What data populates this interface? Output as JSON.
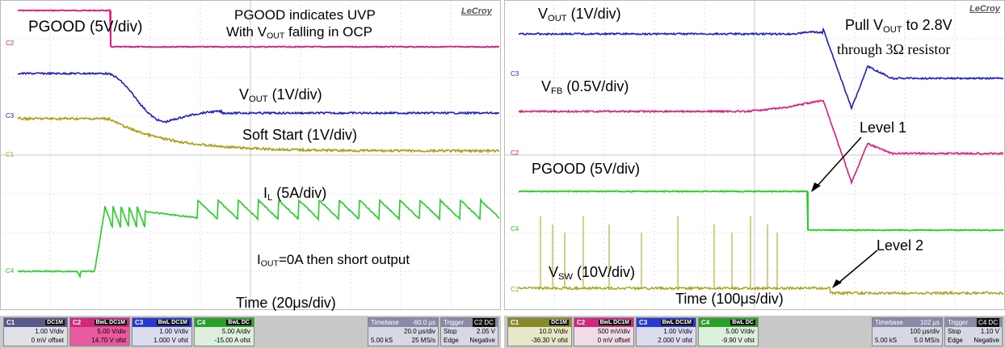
{
  "left": {
    "brand": "LeCroy",
    "labels": {
      "pgood": "PGOOD (5V/div)",
      "uvp_line1": "PGOOD indicates UVP",
      "uvp_line2a": "With V",
      "uvp_sub": "OUT",
      "uvp_line2b": " falling in OCP",
      "vout_a": "V",
      "vout_sub": "OUT",
      "vout_b": " (1V/div)",
      "ss": "Soft Start (1V/div)",
      "il_a": "I",
      "il_sub": "L",
      "il_b": " (5A/div)",
      "iout_a": "I",
      "iout_sub": "OUT",
      "iout_b": "=0A then short output",
      "time": "Time (20μs/div)"
    },
    "markers": {
      "c2": "C2",
      "c3": "C3",
      "c1": "C1",
      "c4": "C4"
    },
    "channels": [
      {
        "name": "C1",
        "mode": "DC1M",
        "line1": "1.00 V/div",
        "line2": "0 mV offset",
        "color": "#5a5a8a"
      },
      {
        "name": "C2",
        "mode": "BwL DC1M",
        "line1": "5.00 V/div",
        "line2": "14.70 V ofst",
        "color": "#d0287a"
      },
      {
        "name": "C3",
        "mode": "BwL DC1M",
        "line1": "1.00 V/div",
        "line2": "1.000 V ofst",
        "color": "#2a3ad0"
      },
      {
        "name": "C4",
        "mode": "BwL DC",
        "line1": "5.00 A/div",
        "line2": "-15.00 A ofst",
        "color": "#2aa02a"
      }
    ],
    "timebase": {
      "label": "Timebase",
      "value": "-60.0 µs",
      "div": "20.0 µs/div",
      "samples": "5.00 kS",
      "rate": "25 MS/s"
    },
    "trigger": {
      "label": "Trigger",
      "ch": "C2 DC",
      "mode": "Stop",
      "level": "2.05 V",
      "type": "Edge",
      "slope": "Negative"
    }
  },
  "right": {
    "brand": "LeCroy",
    "labels": {
      "vout_a": "V",
      "vout_sub": "OUT",
      "vout_b": " (1V/div)",
      "pull_a": "Pull V",
      "pull_sub": "OUT",
      "pull_b": " to 2.8V",
      "pull_line2": "through 3Ω resistor",
      "vfb_a": "V",
      "vfb_sub": "FB",
      "vfb_b": " (0.5V/div)",
      "level1": "Level 1",
      "pgood": "PGOOD (5V/div)",
      "level2": "Level 2",
      "vsw_a": "V",
      "vsw_sub": "SW",
      "vsw_b": " (10V/div)",
      "time": "Time (100μs/div)"
    },
    "markers": {
      "c3": "C3",
      "c2": "C2",
      "c4": "C4",
      "c1": "C1"
    },
    "channels": [
      {
        "name": "C1",
        "mode": "DC1M",
        "line1": "10.0 V/div",
        "line2": "-36.30 V ofst",
        "color": "#8a8a2a"
      },
      {
        "name": "C2",
        "mode": "BwL DC1M",
        "line1": "500 mV/div",
        "line2": "0 mV offset",
        "color": "#d0287a"
      },
      {
        "name": "C3",
        "mode": "BwL DC1M",
        "line1": "1.00 V/div",
        "line2": "2.000 V ofst",
        "color": "#2a3ad0"
      },
      {
        "name": "C4",
        "mode": "BwL DC",
        "line1": "5.00 V/div",
        "line2": "-9.90 V ofst",
        "color": "#2aa02a"
      }
    ],
    "timebase": {
      "label": "Timebase",
      "value": "102 µs",
      "div": "100 µs/div",
      "samples": "5.00 kS",
      "rate": "5.0 MS/s"
    },
    "trigger": {
      "label": "Trigger",
      "ch": "C4 DC",
      "mode": "Stop",
      "level": "1.10 V",
      "type": "Edge",
      "slope": "Negative"
    }
  },
  "colors": {
    "pgood": "#e0197a",
    "vout": "#1f1fc8",
    "softstart": "#a8a010",
    "il": "#22d022",
    "grid": "#c8c8c8"
  }
}
